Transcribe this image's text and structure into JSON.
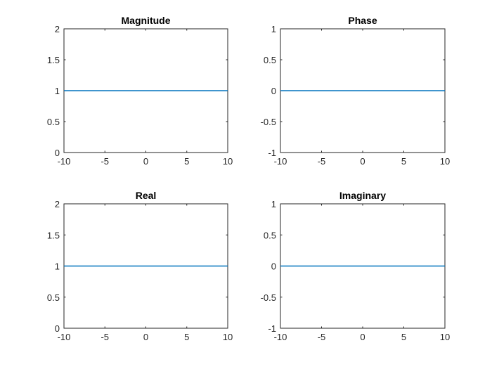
{
  "figure": {
    "background": "#ffffff",
    "line_color": "#0072BD"
  },
  "chart_data": [
    {
      "type": "line",
      "title": "Magnitude",
      "xlim": [
        -10,
        10
      ],
      "ylim": [
        0,
        2
      ],
      "xticks": [
        -10,
        -5,
        0,
        5,
        10
      ],
      "yticks": [
        0,
        0.5,
        1,
        1.5,
        2
      ],
      "xtick_labels": [
        "-10",
        "-5",
        "0",
        "5",
        "10"
      ],
      "ytick_labels": [
        "0",
        "0.5",
        "1",
        "1.5",
        "2"
      ],
      "series": [
        {
          "x": [
            -10,
            10
          ],
          "y": [
            1,
            1
          ]
        }
      ],
      "grid": false
    },
    {
      "type": "line",
      "title": "Phase",
      "xlim": [
        -10,
        10
      ],
      "ylim": [
        -1,
        1
      ],
      "xticks": [
        -10,
        -5,
        0,
        5,
        10
      ],
      "yticks": [
        -1,
        -0.5,
        0,
        0.5,
        1
      ],
      "xtick_labels": [
        "-10",
        "-5",
        "0",
        "5",
        "10"
      ],
      "ytick_labels": [
        "-1",
        "-0.5",
        "0",
        "0.5",
        "1"
      ],
      "series": [
        {
          "x": [
            -10,
            10
          ],
          "y": [
            0,
            0
          ]
        }
      ],
      "grid": false
    },
    {
      "type": "line",
      "title": "Real",
      "xlim": [
        -10,
        10
      ],
      "ylim": [
        0,
        2
      ],
      "xticks": [
        -10,
        -5,
        0,
        5,
        10
      ],
      "yticks": [
        0,
        0.5,
        1,
        1.5,
        2
      ],
      "xtick_labels": [
        "-10",
        "-5",
        "0",
        "5",
        "10"
      ],
      "ytick_labels": [
        "0",
        "0.5",
        "1",
        "1.5",
        "2"
      ],
      "series": [
        {
          "x": [
            -10,
            10
          ],
          "y": [
            1,
            1
          ]
        }
      ],
      "grid": false
    },
    {
      "type": "line",
      "title": "Imaginary",
      "xlim": [
        -10,
        10
      ],
      "ylim": [
        -1,
        1
      ],
      "xticks": [
        -10,
        -5,
        0,
        5,
        10
      ],
      "yticks": [
        -1,
        -0.5,
        0,
        0.5,
        1
      ],
      "xtick_labels": [
        "-10",
        "-5",
        "0",
        "5",
        "10"
      ],
      "ytick_labels": [
        "-1",
        "-0.5",
        "0",
        "0.5",
        "1"
      ],
      "series": [
        {
          "x": [
            -10,
            10
          ],
          "y": [
            0,
            0
          ]
        }
      ],
      "grid": false
    }
  ]
}
